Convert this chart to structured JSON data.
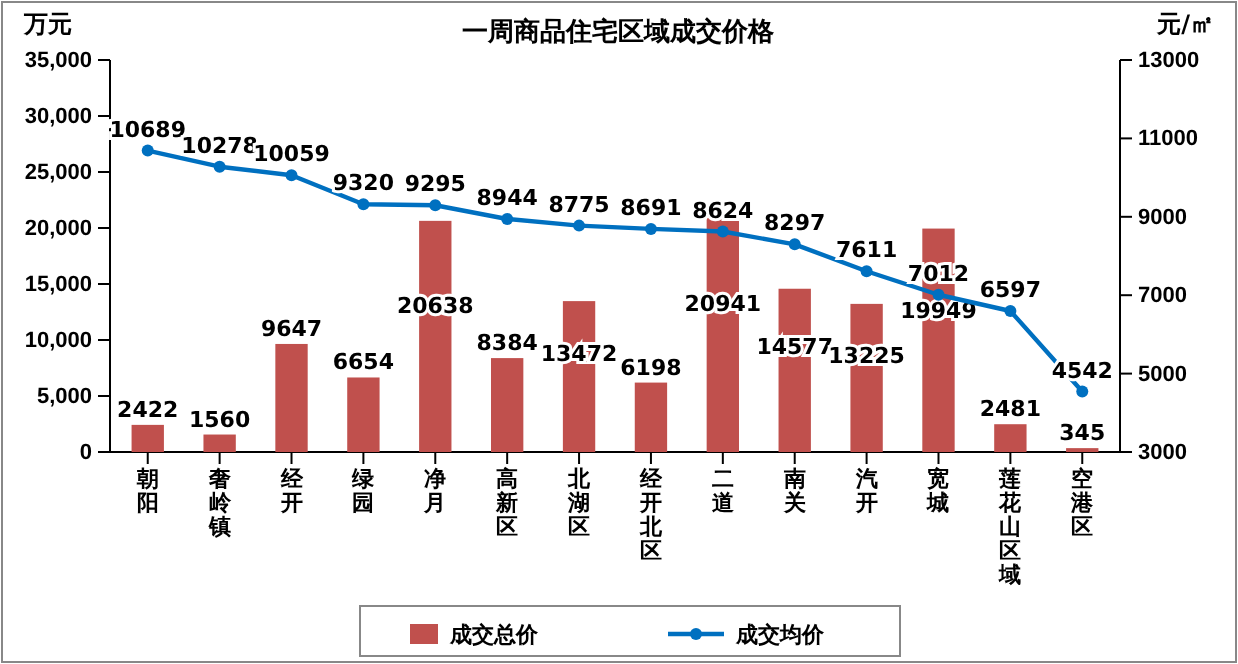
{
  "chart_data": {
    "type": "bar",
    "title": "一周商品住宅区域成交价格",
    "ylabel": "万元",
    "y2label": "元/㎡",
    "categories": [
      "朝阳",
      "奢岭镇",
      "经开",
      "绿园",
      "净月",
      "高新区",
      "北湖区",
      "经开北区",
      "二道",
      "南关",
      "汽开",
      "宽城",
      "莲花山区域",
      "空港区"
    ],
    "series": [
      {
        "name": "成交总价",
        "color": "#c0504d",
        "values": [
          2422,
          1560,
          9647,
          6654,
          20638,
          8384,
          13472,
          6198,
          20941,
          14577,
          13225,
          19949,
          2481,
          345
        ]
      },
      {
        "name": "成交均价",
        "type": "line",
        "axis": "y2",
        "color": "#0070c0",
        "values": [
          10689,
          10278,
          10059,
          9320,
          9295,
          8944,
          8775,
          8691,
          8624,
          8297,
          7611,
          7012,
          6597,
          4542
        ]
      }
    ],
    "ylim": [
      0,
      35000
    ],
    "yticks": [
      0,
      {
        "value": 5000,
        "label": "5,000"
      },
      {
        "value": 10000,
        "label": "10,000"
      },
      {
        "value": 15000,
        "label": "15,000"
      },
      {
        "value": 20000,
        "label": "20,000"
      },
      {
        "value": 25000,
        "label": "25,000"
      },
      {
        "value": 30000,
        "label": "30,000"
      },
      {
        "value": 35000,
        "label": "35,000"
      }
    ],
    "y2lim": [
      3000,
      13000
    ],
    "y2ticks": [
      3000,
      5000,
      7000,
      9000,
      11000,
      13000
    ],
    "data_labels": true,
    "legend": "bottom",
    "marker": "circle",
    "grid": false
  }
}
